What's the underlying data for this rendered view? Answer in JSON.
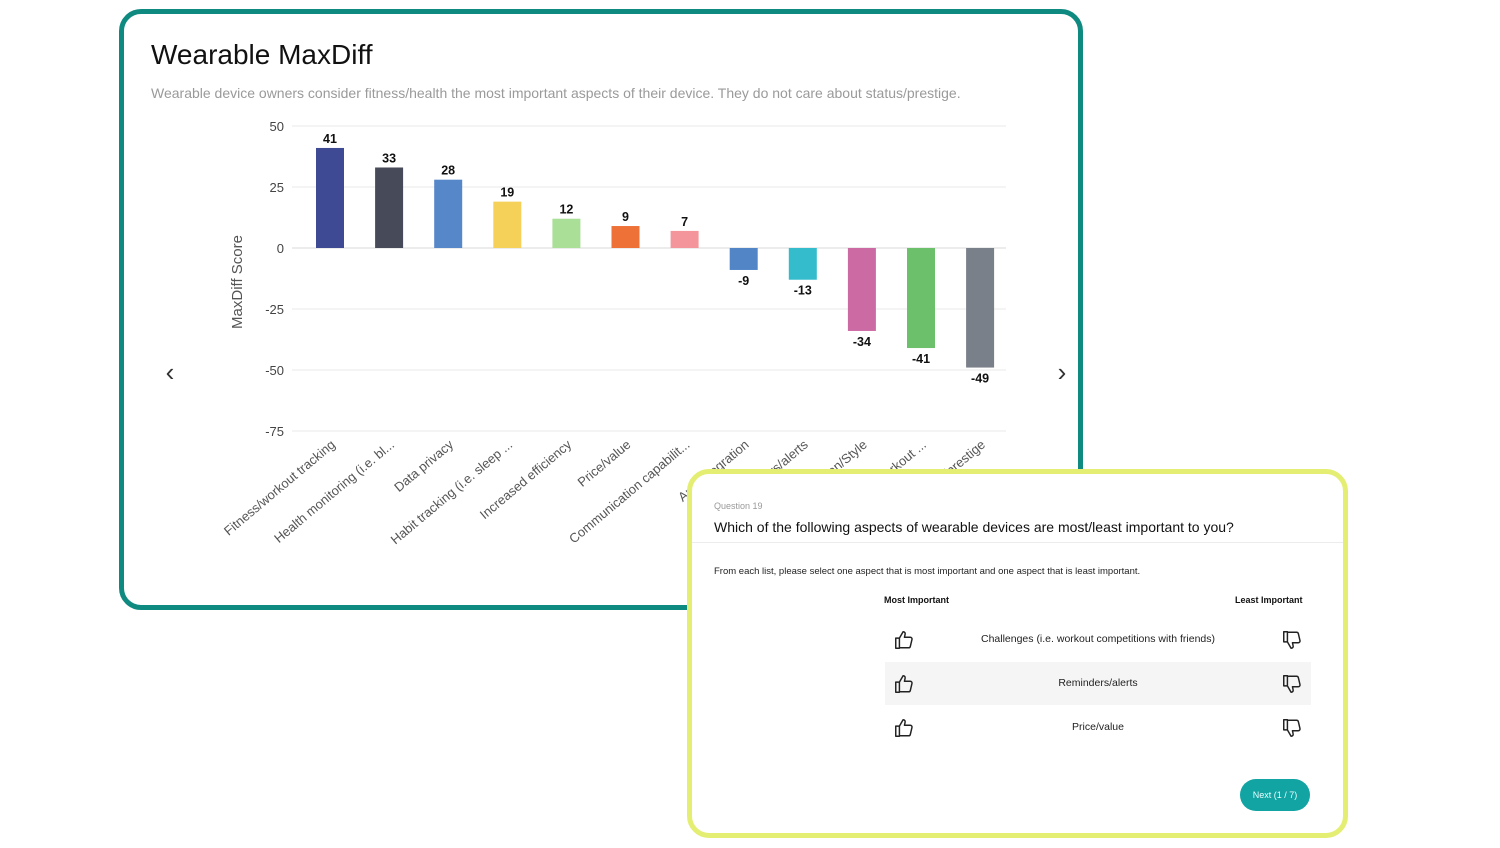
{
  "chart_card": {
    "title": "Wearable MaxDiff",
    "subtitle": "Wearable device owners consider fitness/health the most important aspects of their device. They do not care about status/prestige.",
    "prev_icon": "chevron-left-icon",
    "next_icon": "chevron-right-icon",
    "border_color": "#0f8a80"
  },
  "chart_data": {
    "type": "bar",
    "title": "Wearable MaxDiff",
    "ylabel": "MaxDiff Score",
    "xlabel": "",
    "ylim": [
      -75,
      50
    ],
    "yticks": [
      50,
      25,
      0,
      -25,
      -50,
      -75
    ],
    "grid": true,
    "legend": "none",
    "categories": [
      "Fitness/workout tracking",
      "Health monitoring (i.e. bl...",
      "Data privacy",
      "Habit tracking (i.e. sleep ...",
      "Increased efficiency",
      "Price/value",
      "Communication capabilit...",
      "App integration",
      "Reminders/alerts",
      "Fashion/Style",
      "Challenges (i.e. workout ...",
      "Status/prestige"
    ],
    "values": [
      41,
      33,
      28,
      19,
      12,
      9,
      7,
      -9,
      -13,
      -34,
      -41,
      -49
    ],
    "colors": [
      "#3f4a95",
      "#474b59",
      "#5587c9",
      "#f6d15a",
      "#a9df96",
      "#ee7137",
      "#f4959b",
      "#5185c6",
      "#34bccc",
      "#cc6aa4",
      "#6cc06c",
      "#7a8089"
    ]
  },
  "survey": {
    "question_number": "Question 19",
    "question": "Which of the following aspects of wearable devices are most/least important to you?",
    "instructions": "From each list, please select one aspect that is most important and one aspect that is least important.",
    "most_label": "Most Important",
    "least_label": "Least Important",
    "options": [
      {
        "label": "Challenges (i.e. workout competitions with friends)",
        "most_icon": "thumbs-up-icon",
        "least_icon": "thumbs-down-icon"
      },
      {
        "label": "Reminders/alerts",
        "most_icon": "thumbs-up-icon",
        "least_icon": "thumbs-down-icon"
      },
      {
        "label": "Price/value",
        "most_icon": "thumbs-up-icon",
        "least_icon": "thumbs-down-icon"
      }
    ],
    "next_label": "Next (1 / 7)",
    "accent_color": "#12a3a3",
    "border_color": "#e3ee72"
  }
}
